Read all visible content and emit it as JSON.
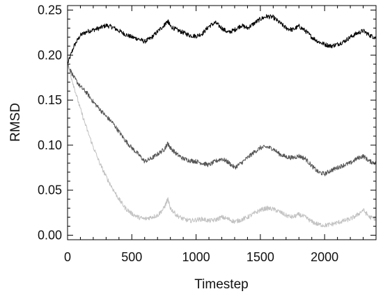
{
  "chart_data": {
    "type": "line",
    "title": "",
    "xlabel": "Timestep",
    "ylabel": "RMSD",
    "xlim": [
      0,
      2400
    ],
    "ylim": [
      -0.005,
      0.255
    ],
    "xticks": [
      0,
      500,
      1000,
      1500,
      2000
    ],
    "xtick_labels": [
      "0",
      "500",
      "1000",
      "1500",
      "2000"
    ],
    "yticks": [
      0.0,
      0.05,
      0.1,
      0.15,
      0.2,
      0.25
    ],
    "ytick_labels": [
      "0.00",
      "0.05",
      "0.10",
      "0.15",
      "0.20",
      "0.25"
    ],
    "grid": false,
    "legend": "none",
    "series": [
      {
        "color": "#000000",
        "x": [
          0,
          50,
          100,
          150,
          200,
          250,
          300,
          350,
          400,
          450,
          500,
          550,
          600,
          650,
          700,
          750,
          780,
          800,
          850,
          900,
          950,
          1000,
          1050,
          1100,
          1150,
          1200,
          1250,
          1300,
          1350,
          1400,
          1450,
          1500,
          1550,
          1600,
          1650,
          1700,
          1750,
          1800,
          1850,
          1900,
          1950,
          2000,
          2050,
          2100,
          2150,
          2200,
          2250,
          2300,
          2350,
          2400
        ],
        "y": [
          0.19,
          0.21,
          0.222,
          0.226,
          0.228,
          0.23,
          0.233,
          0.231,
          0.227,
          0.223,
          0.22,
          0.218,
          0.215,
          0.219,
          0.226,
          0.233,
          0.238,
          0.232,
          0.228,
          0.225,
          0.222,
          0.221,
          0.224,
          0.232,
          0.236,
          0.23,
          0.225,
          0.228,
          0.233,
          0.23,
          0.235,
          0.24,
          0.243,
          0.242,
          0.236,
          0.23,
          0.228,
          0.232,
          0.227,
          0.22,
          0.215,
          0.212,
          0.21,
          0.212,
          0.215,
          0.22,
          0.224,
          0.227,
          0.222,
          0.219
        ]
      },
      {
        "color": "#555555",
        "x": [
          0,
          50,
          100,
          150,
          200,
          250,
          300,
          350,
          400,
          450,
          500,
          550,
          600,
          650,
          700,
          750,
          780,
          800,
          850,
          900,
          950,
          1000,
          1050,
          1100,
          1150,
          1200,
          1250,
          1300,
          1350,
          1400,
          1450,
          1500,
          1550,
          1600,
          1650,
          1700,
          1750,
          1800,
          1850,
          1900,
          1950,
          2000,
          2050,
          2100,
          2150,
          2200,
          2250,
          2300,
          2350,
          2400
        ],
        "y": [
          0.19,
          0.175,
          0.165,
          0.158,
          0.148,
          0.14,
          0.132,
          0.125,
          0.115,
          0.105,
          0.097,
          0.09,
          0.082,
          0.085,
          0.09,
          0.095,
          0.102,
          0.097,
          0.09,
          0.085,
          0.083,
          0.082,
          0.08,
          0.078,
          0.082,
          0.085,
          0.081,
          0.075,
          0.08,
          0.086,
          0.092,
          0.097,
          0.098,
          0.096,
          0.09,
          0.087,
          0.086,
          0.088,
          0.085,
          0.077,
          0.07,
          0.068,
          0.072,
          0.075,
          0.078,
          0.08,
          0.085,
          0.088,
          0.082,
          0.08
        ]
      },
      {
        "color": "#c2c2c2",
        "x": [
          0,
          50,
          100,
          150,
          200,
          250,
          300,
          350,
          400,
          450,
          500,
          550,
          600,
          650,
          700,
          750,
          780,
          800,
          850,
          900,
          950,
          1000,
          1050,
          1100,
          1150,
          1200,
          1250,
          1300,
          1350,
          1400,
          1450,
          1500,
          1550,
          1600,
          1650,
          1700,
          1750,
          1800,
          1850,
          1900,
          1950,
          2000,
          2050,
          2100,
          2150,
          2200,
          2250,
          2300,
          2350,
          2400
        ],
        "y": [
          0.19,
          0.165,
          0.14,
          0.118,
          0.098,
          0.08,
          0.065,
          0.052,
          0.04,
          0.03,
          0.024,
          0.02,
          0.018,
          0.02,
          0.022,
          0.03,
          0.04,
          0.03,
          0.022,
          0.018,
          0.016,
          0.017,
          0.018,
          0.016,
          0.017,
          0.02,
          0.018,
          0.015,
          0.017,
          0.02,
          0.024,
          0.028,
          0.03,
          0.029,
          0.026,
          0.022,
          0.02,
          0.023,
          0.02,
          0.015,
          0.012,
          0.011,
          0.012,
          0.014,
          0.016,
          0.018,
          0.022,
          0.028,
          0.02,
          0.018
        ]
      }
    ]
  }
}
